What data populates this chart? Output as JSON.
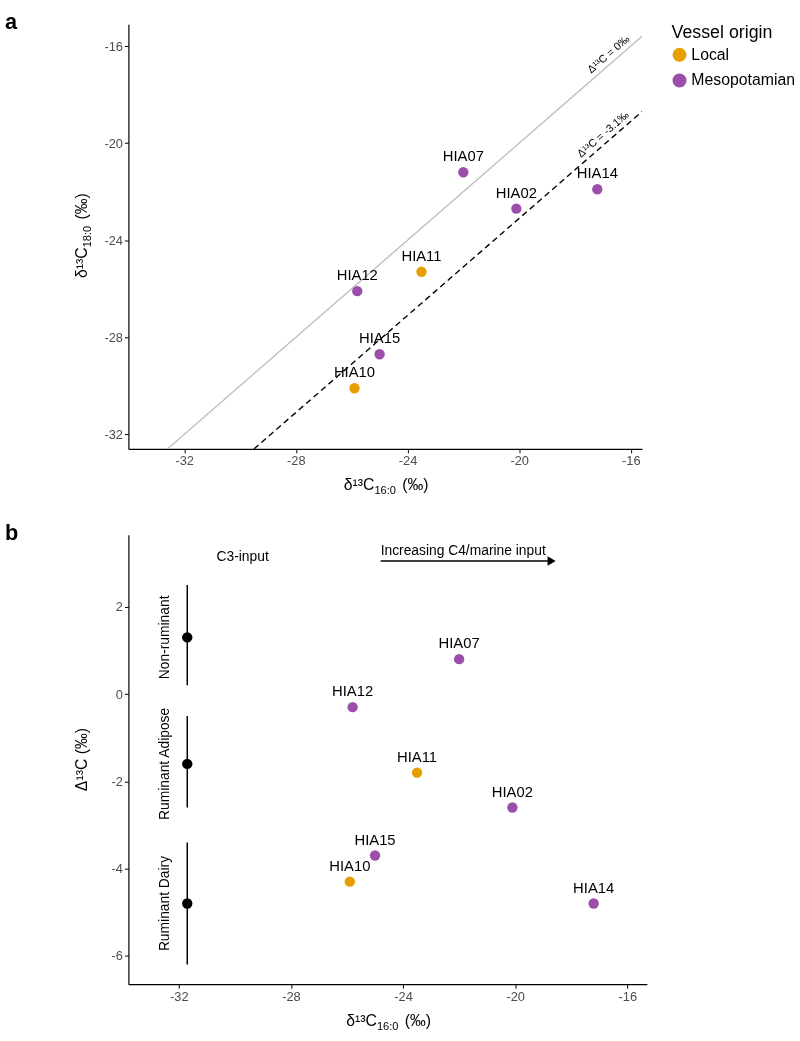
{
  "chart_data": [
    {
      "type": "scatter",
      "title": "a",
      "xlabel": "δ¹³C$_{16:0}$ (‰)",
      "ylabel": "δ¹³C$_{18:0}$ (‰)",
      "legend_title": "Vessel origin",
      "legend": "right",
      "marker": "circle",
      "grid": false,
      "xlim": [
        -34,
        -15.6
      ],
      "ylim": [
        -32.6,
        -15.1
      ],
      "xticks": [
        -32,
        -28,
        -24,
        -20,
        -16
      ],
      "yticks": [
        -32,
        -28,
        -24,
        -20,
        -16
      ],
      "series": [
        {
          "type": "line",
          "color": "#bebebe",
          "line_style": "solid",
          "marker": "none",
          "x": [
            -32.6,
            -15.6
          ],
          "values": [
            -32.6,
            -15.6
          ]
        },
        {
          "type": "line",
          "color": "#000000",
          "line_style": "dashed",
          "marker": "none",
          "x": [
            -29.5,
            -15.6
          ],
          "values": [
            -32.6,
            -18.7
          ]
        },
        {
          "name": "Local",
          "color": "#e69f00",
          "x": [
            -23.5,
            -25.9
          ],
          "values": [
            -25.3,
            -30.1
          ]
        },
        {
          "name": "Mesopotamian",
          "color": "#9b4fab",
          "x": [
            -22.0,
            -25.8,
            -20.1,
            -25.0,
            -17.2
          ],
          "values": [
            -21.2,
            -26.1,
            -22.7,
            -28.7,
            -21.9
          ]
        }
      ],
      "annotations": [
        {
          "text": "Δ¹³C = 0‰",
          "x": -16.6,
          "y": -16.6
        },
        {
          "text": "Δ¹³C = -3.1‰",
          "x": -16.8,
          "y": -19.9
        },
        {
          "text": "HIA11",
          "x": -23.5,
          "y": -25.3
        },
        {
          "text": "HIA10",
          "x": -25.9,
          "y": -30.1
        },
        {
          "text": "HIA07",
          "x": -22.0,
          "y": -21.2
        },
        {
          "text": "HIA12",
          "x": -25.8,
          "y": -26.1
        },
        {
          "text": "HIA02",
          "x": -20.1,
          "y": -22.7
        },
        {
          "text": "HIA15",
          "x": -25.0,
          "y": -28.7
        },
        {
          "text": "HIA14",
          "x": -17.2,
          "y": -21.9
        }
      ]
    },
    {
      "type": "scatter",
      "title": "b",
      "xlabel": "δ¹³C$_{16:0}$ (‰)",
      "ylabel": "Δ¹³C (‰)",
      "marker": "circle",
      "grid": false,
      "xlim": [
        -33.8,
        -15.3
      ],
      "ylim": [
        -6.65,
        3.65
      ],
      "xticks": [
        -32,
        -28,
        -24,
        -20,
        -16
      ],
      "yticks": [
        -6,
        -4,
        -2,
        0,
        2
      ],
      "series": [
        {
          "color": "#000000",
          "x": [
            -31.7,
            -31.7,
            -31.7
          ],
          "values": [
            1.3,
            -1.6,
            -4.8
          ],
          "errors": [
            [
              0.2,
              2.5
            ],
            [
              -2.6,
              -0.5
            ],
            [
              -6.2,
              -3.4
            ]
          ]
        },
        {
          "color": "#e69f00",
          "x": [
            -23.5,
            -25.9
          ],
          "values": [
            -1.8,
            -4.3
          ]
        },
        {
          "color": "#9b4fab",
          "x": [
            -22.0,
            -25.8,
            -20.1,
            -25.0,
            -17.2
          ],
          "values": [
            0.8,
            -0.3,
            -2.6,
            -3.7,
            -4.8
          ]
        },
        {
          "type": "line",
          "color": "#000000",
          "line_style": "solid",
          "marker": "triangle",
          "x": [
            -24.8,
            -18.7
          ],
          "values": [
            3.05,
            3.05
          ]
        }
      ],
      "annotations": [
        "Non-ruminant",
        "Ruminant Adipose",
        "Ruminant Dairy",
        "C3-input",
        "Increasing C4/marine input",
        {
          "text": "HIA11",
          "x": -23.5,
          "y": -1.8
        },
        {
          "text": "HIA10",
          "x": -25.9,
          "y": -4.3
        },
        {
          "text": "HIA07",
          "x": -22.0,
          "y": 0.8
        },
        {
          "text": "HIA12",
          "x": -25.8,
          "y": -0.3
        },
        {
          "text": "HIA02",
          "x": -20.1,
          "y": -2.6
        },
        {
          "text": "HIA15",
          "x": -25.0,
          "y": -3.7
        },
        {
          "text": "HIA14",
          "x": -17.2,
          "y": -4.8
        }
      ]
    }
  ]
}
